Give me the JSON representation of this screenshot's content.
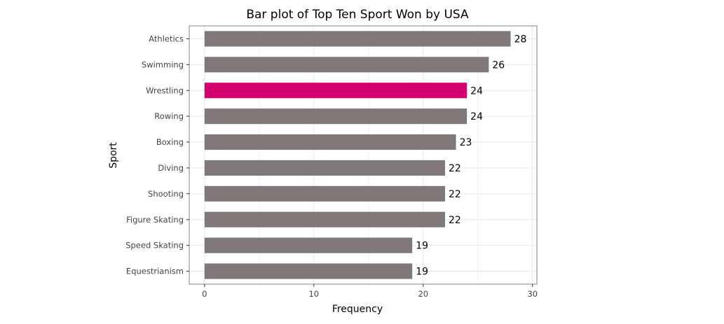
{
  "chart_data": {
    "type": "bar",
    "orientation": "horizontal",
    "title": "Bar plot of Top Ten Sport Won by USA",
    "xlabel": "Frequency",
    "ylabel": "Sport",
    "categories": [
      "Athletics",
      "Swimming",
      "Wrestling",
      "Rowing",
      "Boxing",
      "Diving",
      "Shooting",
      "Figure Skating",
      "Speed Skating",
      "Equestrianism"
    ],
    "values": [
      28,
      26,
      24,
      24,
      23,
      22,
      22,
      22,
      19,
      19
    ],
    "highlight": "Wrestling",
    "xlim": [
      -1.4,
      30.4
    ],
    "xticks": [
      0,
      10,
      20,
      30
    ],
    "grid": true,
    "legend": "none",
    "colors": {
      "bar": "#807878",
      "highlight": "#d4006e",
      "grid": "#e6e6e6",
      "panel_border": "#808080"
    }
  }
}
